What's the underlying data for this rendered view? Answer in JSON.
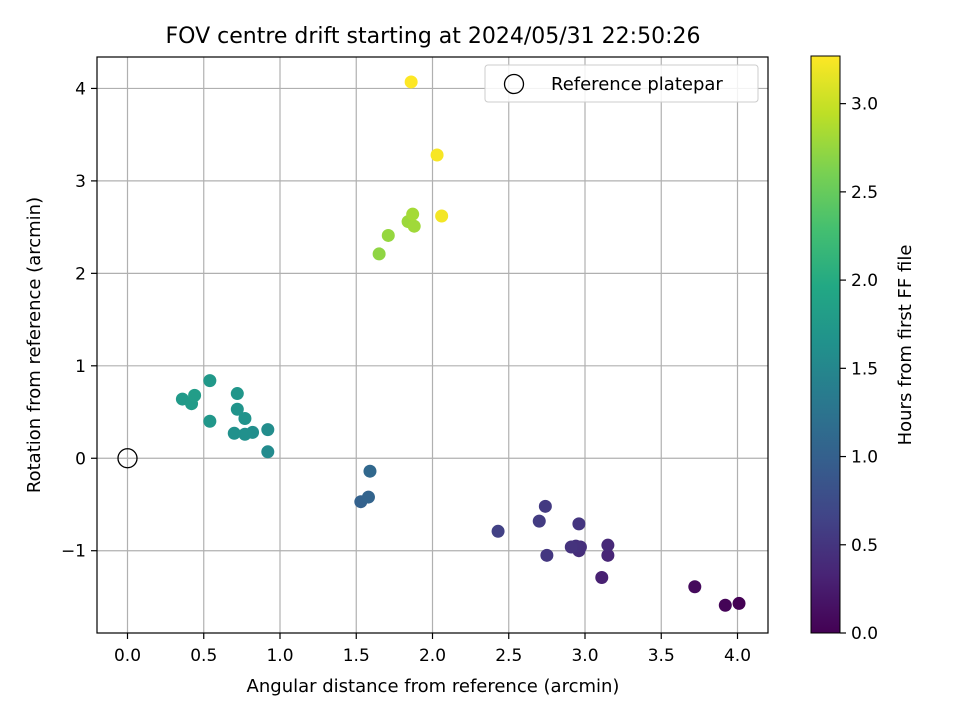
{
  "chart_data": {
    "type": "scatter",
    "title": "FOV centre drift starting at 2024/05/31 22:50:26",
    "xlabel": "Angular distance from reference (arcmin)",
    "ylabel": "Rotation from reference (arcmin)",
    "xlim": [
      -0.2,
      4.2
    ],
    "ylim": [
      -1.89,
      4.34
    ],
    "xticks": [
      0.0,
      0.5,
      1.0,
      1.5,
      2.0,
      2.5,
      3.0,
      3.5,
      4.0
    ],
    "xtick_labels": [
      "0.0",
      "0.5",
      "1.0",
      "1.5",
      "2.0",
      "2.5",
      "3.0",
      "3.5",
      "4.0"
    ],
    "yticks": [
      -1,
      0,
      1,
      2,
      3,
      4
    ],
    "ytick_labels": [
      "−1",
      "0",
      "1",
      "2",
      "3",
      "4"
    ],
    "grid": true,
    "legend": {
      "position": "top-right",
      "entries": [
        "Reference platepar"
      ]
    },
    "reference_point": {
      "name": "Reference platepar",
      "x": 0.0,
      "y": 0.0
    },
    "colorbar": {
      "label": "Hours from first FF file",
      "colormap": "viridis",
      "range": [
        0.0,
        3.27
      ],
      "ticks": [
        0.0,
        0.5,
        1.0,
        1.5,
        2.0,
        2.5,
        3.0
      ],
      "tick_labels": [
        "0.0",
        "0.5",
        "1.0",
        "1.5",
        "2.0",
        "2.5",
        "3.0"
      ]
    },
    "points": [
      {
        "x": 4.01,
        "y": -1.57,
        "hours": 0.0
      },
      {
        "x": 3.92,
        "y": -1.59,
        "hours": 0.03
      },
      {
        "x": 3.72,
        "y": -1.39,
        "hours": 0.08
      },
      {
        "x": 3.11,
        "y": -1.29,
        "hours": 0.3
      },
      {
        "x": 3.15,
        "y": -1.05,
        "hours": 0.35
      },
      {
        "x": 3.15,
        "y": -0.94,
        "hours": 0.38
      },
      {
        "x": 2.96,
        "y": -1.0,
        "hours": 0.42
      },
      {
        "x": 2.97,
        "y": -0.96,
        "hours": 0.44
      },
      {
        "x": 2.94,
        "y": -0.95,
        "hours": 0.46
      },
      {
        "x": 2.91,
        "y": -0.96,
        "hours": 0.48
      },
      {
        "x": 2.96,
        "y": -0.71,
        "hours": 0.5
      },
      {
        "x": 2.75,
        "y": -1.05,
        "hours": 0.52
      },
      {
        "x": 2.74,
        "y": -0.52,
        "hours": 0.55
      },
      {
        "x": 2.7,
        "y": -0.68,
        "hours": 0.57
      },
      {
        "x": 2.43,
        "y": -0.79,
        "hours": 0.62
      },
      {
        "x": 1.53,
        "y": -0.47,
        "hours": 1.02
      },
      {
        "x": 1.58,
        "y": -0.42,
        "hours": 1.05
      },
      {
        "x": 1.59,
        "y": -0.14,
        "hours": 1.1
      },
      {
        "x": 0.92,
        "y": 0.07,
        "hours": 1.55
      },
      {
        "x": 0.92,
        "y": 0.31,
        "hours": 1.58
      },
      {
        "x": 0.82,
        "y": 0.28,
        "hours": 1.6
      },
      {
        "x": 0.77,
        "y": 0.26,
        "hours": 1.62
      },
      {
        "x": 0.7,
        "y": 0.27,
        "hours": 1.64
      },
      {
        "x": 0.77,
        "y": 0.43,
        "hours": 1.66
      },
      {
        "x": 0.72,
        "y": 0.53,
        "hours": 1.68
      },
      {
        "x": 0.72,
        "y": 0.7,
        "hours": 1.7
      },
      {
        "x": 0.54,
        "y": 0.4,
        "hours": 1.72
      },
      {
        "x": 0.54,
        "y": 0.84,
        "hours": 1.74
      },
      {
        "x": 0.36,
        "y": 0.64,
        "hours": 1.76
      },
      {
        "x": 0.42,
        "y": 0.59,
        "hours": 1.78
      },
      {
        "x": 0.44,
        "y": 0.68,
        "hours": 1.8
      },
      {
        "x": 1.65,
        "y": 2.21,
        "hours": 2.72
      },
      {
        "x": 1.71,
        "y": 2.41,
        "hours": 2.75
      },
      {
        "x": 1.84,
        "y": 2.56,
        "hours": 2.78
      },
      {
        "x": 1.88,
        "y": 2.51,
        "hours": 2.8
      },
      {
        "x": 1.87,
        "y": 2.64,
        "hours": 2.82
      },
      {
        "x": 2.06,
        "y": 2.62,
        "hours": 3.22
      },
      {
        "x": 2.03,
        "y": 3.28,
        "hours": 3.24
      },
      {
        "x": 1.86,
        "y": 4.07,
        "hours": 3.27
      }
    ]
  }
}
